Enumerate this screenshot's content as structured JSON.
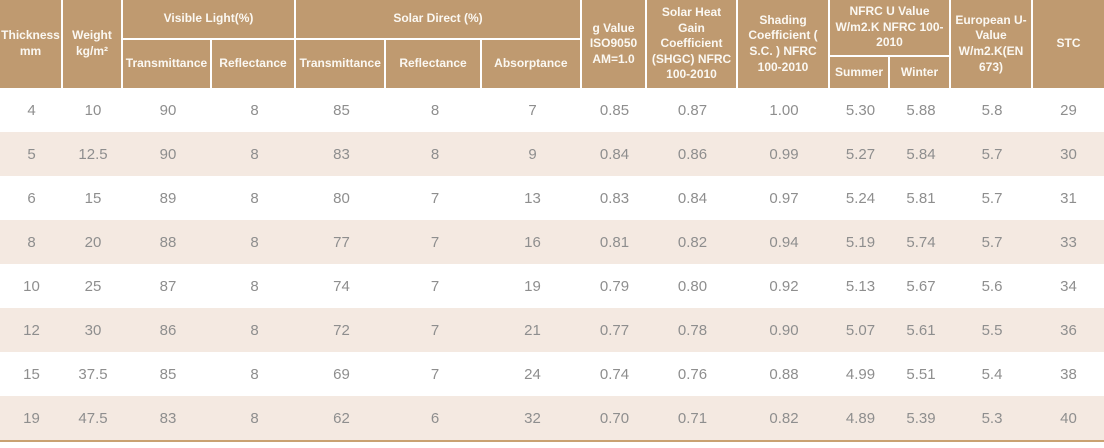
{
  "colors": {
    "header_bg": "#bf9a70",
    "header_text": "#fbf8f2",
    "row_bg": "#ffffff",
    "row_alt_bg": "#f4e9e1",
    "cell_text": "#8e8e8e",
    "bottom_border": "#c9a272"
  },
  "header": {
    "thickness": "Thickness mm",
    "weight": "Weight kg/m²",
    "visible_light": {
      "label": "Visible Light(%)",
      "transmittance": "Transmittance",
      "reflectance": "Reflectance"
    },
    "solar_direct": {
      "label": "Solar Direct (%)",
      "transmittance": "Transmittance",
      "reflectance": "Reflectance",
      "absorptance": "Absorptance"
    },
    "g_value": "g Value ISO9050 AM=1.0",
    "shgc": "Solar Heat Gain Coefficient (SHGC) NFRC 100-2010",
    "shading_coefficient": "Shading Coefficient ( S.C. ) NFRC 100-2010",
    "nfrc_u_value": {
      "label": "NFRC U Value W/m2.K NFRC 100-2010",
      "summer": "Summer",
      "winter": "Winter"
    },
    "european_u_value": "European U-Value W/m2.K(EN 673)",
    "stc": "STC"
  },
  "chart_data": {
    "type": "table",
    "columns": [
      "Thickness mm",
      "Weight kg/m²",
      "Visible Light Transmittance (%)",
      "Visible Light Reflectance (%)",
      "Solar Direct Transmittance (%)",
      "Solar Direct Reflectance (%)",
      "Solar Direct Absorptance (%)",
      "g Value ISO9050 AM=1.0",
      "SHGC NFRC 100-2010",
      "Shading Coefficient S.C. NFRC 100-2010",
      "NFRC U Value Summer",
      "NFRC U Value Winter",
      "European U-Value W/m2.K (EN 673)",
      "STC"
    ],
    "rows": [
      [
        "4",
        "10",
        "90",
        "8",
        "85",
        "8",
        "7",
        "0.85",
        "0.87",
        "1.00",
        "5.30",
        "5.88",
        "5.8",
        "29"
      ],
      [
        "5",
        "12.5",
        "90",
        "8",
        "83",
        "8",
        "9",
        "0.84",
        "0.86",
        "0.99",
        "5.27",
        "5.84",
        "5.7",
        "30"
      ],
      [
        "6",
        "15",
        "89",
        "8",
        "80",
        "7",
        "13",
        "0.83",
        "0.84",
        "0.97",
        "5.24",
        "5.81",
        "5.7",
        "31"
      ],
      [
        "8",
        "20",
        "88",
        "8",
        "77",
        "7",
        "16",
        "0.81",
        "0.82",
        "0.94",
        "5.19",
        "5.74",
        "5.7",
        "33"
      ],
      [
        "10",
        "25",
        "87",
        "8",
        "74",
        "7",
        "19",
        "0.79",
        "0.80",
        "0.92",
        "5.13",
        "5.67",
        "5.6",
        "34"
      ],
      [
        "12",
        "30",
        "86",
        "8",
        "72",
        "7",
        "21",
        "0.77",
        "0.78",
        "0.90",
        "5.07",
        "5.61",
        "5.5",
        "36"
      ],
      [
        "15",
        "37.5",
        "85",
        "8",
        "69",
        "7",
        "24",
        "0.74",
        "0.76",
        "0.88",
        "4.99",
        "5.51",
        "5.4",
        "38"
      ],
      [
        "19",
        "47.5",
        "83",
        "8",
        "62",
        "6",
        "32",
        "0.70",
        "0.71",
        "0.82",
        "4.89",
        "5.39",
        "5.3",
        "40"
      ]
    ]
  }
}
